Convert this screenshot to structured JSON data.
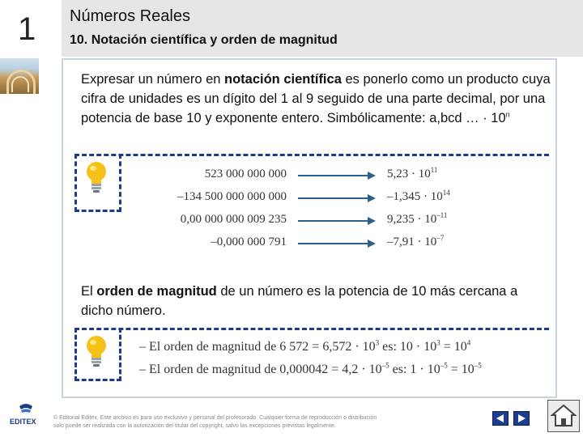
{
  "header": {
    "chapter_number": "1",
    "title": "Números Reales",
    "subtitle": "10. Notación científica y orden de magnitud"
  },
  "section1": {
    "text_before": "Expresar un número en ",
    "bold": "notación científica",
    "text_after": " es ponerlo como un producto cuya cifra de unidades es un dígito del 1 al 9 seguido de una parte decimal, por una potencia de base 10 y exponente entero. Simbólicamente: a,bcd … · 10",
    "symbolic_exponent": "n"
  },
  "examples": [
    {
      "number": "523 000 000 000",
      "mantissa": "5,23 · 10",
      "exponent": "11"
    },
    {
      "number": "–134 500 000 000 000",
      "mantissa": "–1,345 · 10",
      "exponent": "14"
    },
    {
      "number": "0,00 000 000 009 235",
      "mantissa": "9,235 · 10",
      "exponent": "–11"
    },
    {
      "number": "–0,000 000 791",
      "mantissa": "–7,91 · 10",
      "exponent": "–7"
    }
  ],
  "section2": {
    "text_before": "El ",
    "bold": "orden de magnitud",
    "text_after": " de un número es la potencia de 10 más cercana a dicho número."
  },
  "magnitude_examples": [
    {
      "prefix": "– El orden de magnitud de 6 572 = 6,572 · 10",
      "exp1": "3",
      "mid": " es:  10 · 10",
      "exp2": "3",
      "eq": " = 10",
      "exp3": "4"
    },
    {
      "prefix": "– El orden de magnitud de 0,000042 = 4,2 · 10",
      "exp1": "–5",
      "mid": " es:  1 · 10",
      "exp2": "–5",
      "eq": " = 10",
      "exp3": "–5"
    }
  ],
  "footer": {
    "publisher": "EDITEX",
    "note_line1": "© Editorial Editex. Este archivo es para uso exclusivo y personal del profesorado. Cualquier forma de reproducción o distribución",
    "note_line2": "solo puede ser realizada con la autorización del titular del copyright, salvo las excepciones previstas legalmente."
  },
  "colors": {
    "accent": "#1f3a8a",
    "header_band": "#e6e6e6",
    "arrow": "#2d5f8f",
    "bulb": "#f6c21a"
  }
}
